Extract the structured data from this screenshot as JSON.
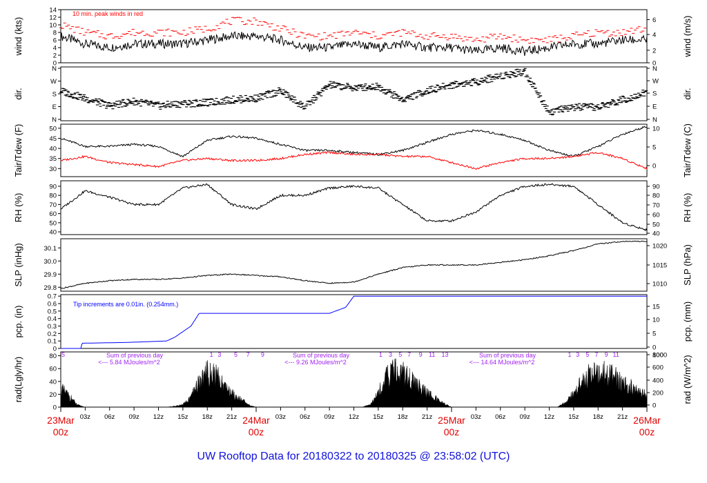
{
  "title": "UW Rooftop Data for 20180322  to  20180325 @ 23:58:02  (UTC)",
  "chart_data": [
    {
      "type": "line",
      "ylabel_left": "wind (kts)",
      "ylabel_right": "wind (m/s)",
      "yticks_left": [
        "0",
        "2",
        "4",
        "6",
        "8",
        "10",
        "12",
        "14"
      ],
      "yticks_right": [
        "0",
        "2",
        "4",
        "6"
      ],
      "ylim": [
        0,
        14
      ],
      "annotation": "10 min. peak winds in red",
      "series": [
        {
          "color": "#000000",
          "x": [
            0,
            3,
            6,
            9,
            12,
            15,
            18,
            21,
            24,
            27,
            30,
            33,
            36,
            39,
            42,
            45,
            48,
            51,
            54,
            57,
            60,
            63,
            66,
            69,
            72
          ],
          "y": [
            7,
            5,
            4,
            5,
            5,
            5,
            6,
            7,
            7,
            6,
            4,
            4,
            5,
            4,
            5,
            4,
            4,
            3,
            4,
            3,
            4,
            5,
            5,
            6,
            6
          ]
        },
        {
          "color": "#ff0000",
          "x": [
            0,
            3,
            6,
            9,
            12,
            15,
            18,
            21,
            24,
            27,
            30,
            33,
            36,
            39,
            42,
            45,
            48,
            51,
            54,
            57,
            60,
            63,
            66,
            69,
            72
          ],
          "y": [
            10,
            8,
            7,
            8,
            8,
            8,
            9,
            11,
            11,
            9,
            7,
            7,
            8,
            7,
            8,
            7,
            7,
            6,
            7,
            6,
            6,
            7,
            8,
            8,
            9
          ]
        }
      ]
    },
    {
      "type": "scatter",
      "ylabel_left": "dir.",
      "ylabel_right": "dir.",
      "yticks_left": [
        "N",
        "E",
        "S",
        "W",
        "N"
      ],
      "yticks_right": [
        "N",
        "E",
        "S",
        "W",
        "N"
      ],
      "ylim": [
        0,
        360
      ],
      "series": [
        {
          "color": "#000000",
          "x": [
            0,
            3,
            6,
            9,
            12,
            15,
            18,
            21,
            24,
            27,
            30,
            33,
            36,
            39,
            42,
            45,
            48,
            51,
            54,
            57,
            60,
            63,
            66,
            69,
            72
          ],
          "y": [
            200,
            150,
            100,
            130,
            100,
            115,
            120,
            140,
            150,
            200,
            90,
            240,
            220,
            230,
            140,
            200,
            240,
            260,
            300,
            330,
            60,
            90,
            90,
            140,
            190
          ]
        }
      ]
    },
    {
      "type": "line",
      "ylabel_left": "Tair/Tdew (F)",
      "ylabel_right": "Tair/Tdew (C)",
      "yticks_left": [
        "30",
        "35",
        "40",
        "45",
        "50"
      ],
      "yticks_right": [
        "0",
        "5",
        "10"
      ],
      "ylim": [
        26,
        52
      ],
      "series": [
        {
          "color": "#000000",
          "x": [
            0,
            3,
            6,
            9,
            12,
            15,
            18,
            21,
            24,
            27,
            30,
            33,
            36,
            39,
            42,
            45,
            48,
            51,
            54,
            57,
            60,
            63,
            66,
            69,
            72
          ],
          "y": [
            45,
            41,
            41,
            42,
            41,
            36,
            44,
            46,
            45,
            42,
            39,
            39,
            38,
            37,
            39,
            43,
            47,
            49,
            47,
            44,
            39,
            36,
            41,
            47,
            51
          ]
        },
        {
          "color": "#ff0000",
          "x": [
            0,
            3,
            6,
            9,
            12,
            15,
            18,
            21,
            24,
            27,
            30,
            33,
            36,
            39,
            42,
            45,
            48,
            51,
            54,
            57,
            60,
            63,
            66,
            69,
            72
          ],
          "y": [
            34,
            36,
            33,
            32,
            31,
            34,
            35,
            34,
            34,
            35,
            37,
            38,
            37,
            37,
            36,
            36,
            33,
            30,
            33,
            35,
            35,
            36,
            38,
            35,
            30
          ]
        }
      ]
    },
    {
      "type": "line",
      "ylabel_left": "RH (%)",
      "ylabel_right": "RH (%)",
      "yticks_left": [
        "40",
        "50",
        "60",
        "70",
        "80",
        "90"
      ],
      "yticks_right": [
        "40",
        "50",
        "60",
        "70",
        "80",
        "90"
      ],
      "ylim": [
        37,
        96
      ],
      "series": [
        {
          "color": "#000000",
          "x": [
            0,
            3,
            6,
            9,
            12,
            15,
            18,
            21,
            24,
            27,
            30,
            33,
            36,
            39,
            42,
            45,
            48,
            51,
            54,
            57,
            60,
            63,
            66,
            69,
            72
          ],
          "y": [
            65,
            85,
            78,
            70,
            70,
            88,
            92,
            70,
            65,
            80,
            80,
            88,
            90,
            88,
            70,
            52,
            52,
            62,
            80,
            90,
            92,
            90,
            70,
            50,
            42
          ]
        }
      ]
    },
    {
      "type": "line",
      "ylabel_left": "SLP (inHg)",
      "ylabel_right": "SLP (hPa)",
      "yticks_left": [
        "29.8",
        "29.9",
        "30.0",
        "30.1"
      ],
      "yticks_right": [
        "1010",
        "1015",
        "1020"
      ],
      "ylim": [
        29.77,
        30.17
      ],
      "series": [
        {
          "color": "#000000",
          "x": [
            0,
            3,
            6,
            9,
            12,
            15,
            18,
            21,
            24,
            27,
            30,
            33,
            36,
            39,
            42,
            45,
            48,
            51,
            54,
            57,
            60,
            63,
            66,
            69,
            72
          ],
          "y": [
            29.79,
            29.83,
            29.85,
            29.86,
            29.86,
            29.87,
            29.89,
            29.9,
            29.89,
            29.88,
            29.85,
            29.83,
            29.84,
            29.9,
            29.95,
            29.97,
            29.97,
            29.97,
            29.99,
            30.01,
            30.04,
            30.08,
            30.13,
            30.15,
            30.15
          ]
        }
      ]
    },
    {
      "type": "line",
      "ylabel_left": "pcp. (in)",
      "ylabel_right": "pcp. (mm)",
      "yticks_left": [
        "0",
        "0.1",
        "0.2",
        "0.3",
        "0.4",
        "0.5",
        "0.6",
        "0.7"
      ],
      "yticks_right": [
        "0",
        "5",
        "10",
        "15"
      ],
      "ylim": [
        0,
        0.72
      ],
      "annotation": "Tip increments are 0.01in. (0.254mm.)",
      "series": [
        {
          "color": "#0000ff",
          "x": [
            0,
            2.5,
            2.6,
            8,
            13,
            14,
            16,
            17,
            24,
            27,
            30,
            33,
            35,
            36,
            48,
            60,
            72
          ],
          "y": [
            0,
            0,
            0.07,
            0.08,
            0.1,
            0.15,
            0.3,
            0.47,
            0.47,
            0.47,
            0.47,
            0.47,
            0.55,
            0.7,
            0.7,
            0.7,
            0.7
          ]
        }
      ]
    },
    {
      "type": "area",
      "ylabel_left": "rad(Lgly/hr)",
      "ylabel_right": "rad (W/m^2)",
      "yticks_left": [
        "0",
        "20",
        "40",
        "60",
        "80"
      ],
      "yticks_right": [
        "0",
        "200",
        "400",
        "600",
        "800",
        "1000"
      ],
      "ylim": [
        0,
        86
      ],
      "annotations": [
        {
          "text": "Sum of previous day",
          "sub": "<--- 5.84 MJoules/m^2"
        },
        {
          "text": "Sum of previous day",
          "sub": "<--- 9.26 MJoules/m^2"
        },
        {
          "text": "Sum of previous day",
          "sub": "<--- 14.64 MJoules/m^2"
        }
      ],
      "hour_marks": [
        "5",
        "1",
        "3",
        "5",
        "7",
        "9",
        "1",
        "3",
        "5",
        "7",
        "9",
        "11",
        "13",
        "1",
        "3",
        "5",
        "7",
        "9",
        "11"
      ],
      "series": [
        {
          "color": "#000000",
          "x": [
            0,
            1,
            2,
            3,
            13,
            14,
            15,
            16,
            17,
            18,
            19,
            20,
            21,
            22,
            23,
            24,
            37,
            38,
            39,
            40,
            41,
            42,
            43,
            44,
            45,
            46,
            47,
            48,
            61,
            62,
            63,
            64,
            65,
            66,
            67,
            68,
            69,
            70,
            71,
            72
          ],
          "y": [
            40,
            25,
            5,
            0,
            0,
            2,
            5,
            20,
            55,
            75,
            70,
            50,
            30,
            20,
            5,
            0,
            0,
            5,
            30,
            65,
            80,
            75,
            60,
            45,
            30,
            20,
            8,
            0,
            0,
            10,
            30,
            55,
            70,
            78,
            72,
            65,
            55,
            45,
            35,
            25
          ]
        }
      ]
    }
  ],
  "x_axis": {
    "hour_labels": [
      "03z",
      "06z",
      "09z",
      "12z",
      "15z",
      "18z",
      "21z",
      "03z",
      "06z",
      "09z",
      "12z",
      "15z",
      "18z",
      "21z",
      "03z",
      "06z",
      "09z",
      "12z",
      "15z",
      "18z",
      "21z"
    ],
    "date_labels": [
      {
        "date": "23Mar",
        "time": "00z"
      },
      {
        "date": "24Mar",
        "time": "00z"
      },
      {
        "date": "25Mar",
        "time": "00z"
      },
      {
        "date": "26Mar",
        "time": "00z"
      }
    ]
  }
}
